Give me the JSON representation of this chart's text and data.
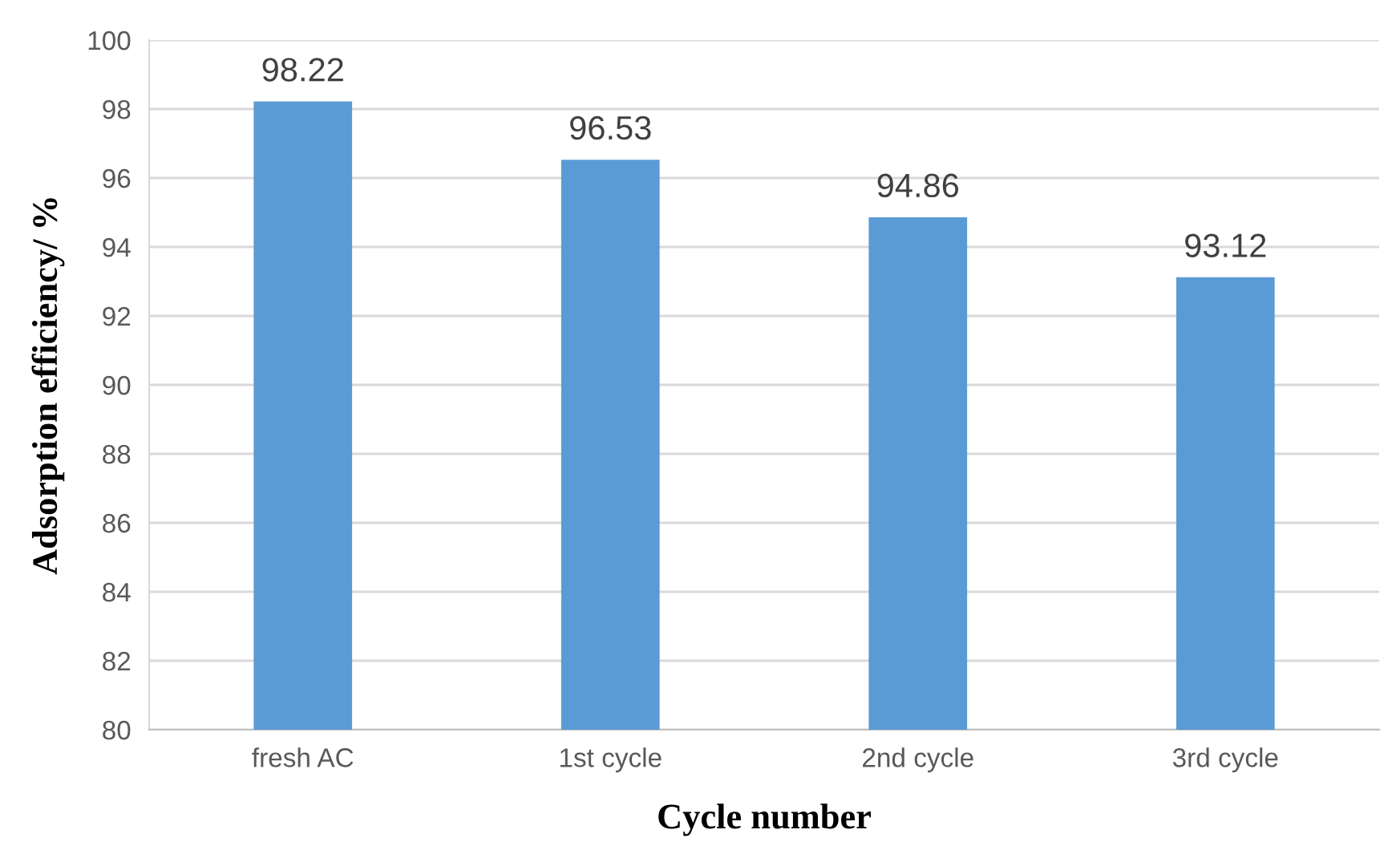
{
  "chart_data": {
    "type": "bar",
    "xlabel": "Cycle number",
    "ylabel": "Adsorption efficiency/ %",
    "categories": [
      "fresh AC",
      "1st cycle",
      "2nd cycle",
      "3rd cycle"
    ],
    "values": [
      98.22,
      96.53,
      94.86,
      93.12
    ],
    "color": "#5b9bd5",
    "ylim": [
      80,
      100
    ],
    "yticks": [
      80,
      82,
      84,
      86,
      88,
      90,
      92,
      94,
      96,
      98,
      100
    ],
    "grid": "y",
    "data_labels": true
  }
}
